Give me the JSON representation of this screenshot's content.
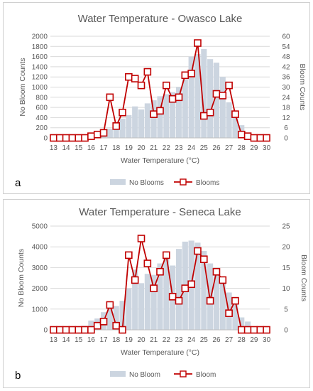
{
  "colors": {
    "bar": "#ccd5e0",
    "line": "#c00000",
    "marker_fill": "#ffffff",
    "grid": "#d9d9d9",
    "axis": "#bfbfbf",
    "text": "#595959"
  },
  "chart_data": [
    {
      "id": "a",
      "type": "bar+line",
      "panel_label": "a",
      "title": "Water Temperature - Owasco Lake",
      "xlabel": "Water Temperature (°C)",
      "ylabel_left": "No Bloom Counts",
      "ylabel_right": "Bloom Counts",
      "ylim_left": [
        0,
        2000
      ],
      "ylim_right": [
        0,
        60
      ],
      "yticks_left": [
        0,
        200,
        400,
        600,
        800,
        1000,
        1200,
        1400,
        1600,
        1800,
        2000
      ],
      "yticks_right": [
        0,
        6,
        12,
        18,
        24,
        30,
        36,
        42,
        48,
        54,
        60
      ],
      "x_ticks": [
        "13",
        "14",
        "15",
        "16",
        "17",
        "18",
        "19",
        "20",
        "21",
        "22",
        "23",
        "24",
        "25",
        "26",
        "27",
        "28",
        "29",
        "30"
      ],
      "x": [
        13,
        13.5,
        14,
        14.5,
        15,
        15.5,
        16,
        16.5,
        17,
        17.5,
        18,
        18.5,
        19,
        19.5,
        20,
        20.5,
        21,
        21.5,
        22,
        22.5,
        23,
        23.5,
        24,
        24.5,
        25,
        25.5,
        26,
        26.5,
        27,
        27.5,
        28,
        28.5,
        29,
        29.5,
        30
      ],
      "grid": true,
      "legend_position": "bottom",
      "series": [
        {
          "name": "No Blooms",
          "type": "bar",
          "axis": "left",
          "values": [
            0,
            0,
            0,
            0,
            0,
            0,
            20,
            80,
            130,
            180,
            250,
            380,
            450,
            620,
            560,
            680,
            740,
            820,
            860,
            900,
            1000,
            1150,
            1600,
            1650,
            1750,
            1550,
            1480,
            1200,
            700,
            400,
            250,
            60,
            20,
            0,
            0
          ]
        },
        {
          "name": "Blooms",
          "type": "line",
          "axis": "right",
          "values": [
            0,
            0,
            0,
            0,
            0,
            0,
            1,
            2,
            3,
            24,
            7,
            15,
            36,
            35,
            31,
            39,
            14,
            16,
            31,
            23,
            24,
            37,
            38,
            56,
            13,
            15,
            26,
            25,
            31,
            14,
            2,
            1,
            0,
            0,
            0
          ]
        }
      ]
    },
    {
      "id": "b",
      "type": "bar+line",
      "panel_label": "b",
      "title": "Water Temperature - Seneca Lake",
      "xlabel": "Water Temperature (°C)",
      "ylabel_left": "No Bloom Counts",
      "ylabel_right": "Bloom Counts",
      "ylim_left": [
        0,
        5000
      ],
      "ylim_right": [
        0,
        25
      ],
      "yticks_left": [
        0,
        1000,
        2000,
        3000,
        4000,
        5000
      ],
      "yticks_right": [
        0,
        5,
        10,
        15,
        20,
        25
      ],
      "x_ticks": [
        "13",
        "14",
        "15",
        "16",
        "17",
        "18",
        "19",
        "20",
        "21",
        "22",
        "23",
        "24",
        "25",
        "26",
        "27",
        "28",
        "29",
        "30"
      ],
      "x": [
        13,
        13.5,
        14,
        14.5,
        15,
        15.5,
        16,
        16.5,
        17,
        17.5,
        18,
        18.5,
        19,
        19.5,
        20,
        20.5,
        21,
        21.5,
        22,
        22.5,
        23,
        23.5,
        24,
        24.5,
        25,
        25.5,
        26,
        26.5,
        27,
        27.5,
        28,
        28.5,
        29,
        29.5,
        30
      ],
      "grid": true,
      "legend_position": "bottom",
      "series": [
        {
          "name": "No Bloom",
          "type": "bar",
          "axis": "left",
          "values": [
            0,
            0,
            0,
            50,
            100,
            200,
            450,
            550,
            850,
            1000,
            1150,
            1400,
            2000,
            2900,
            2250,
            2700,
            2650,
            3200,
            3600,
            3100,
            3900,
            4250,
            4300,
            4200,
            3800,
            3200,
            2800,
            2400,
            1800,
            1300,
            600,
            400,
            100,
            0,
            0
          ]
        },
        {
          "name": "Bloom",
          "type": "line",
          "axis": "right",
          "values": [
            0,
            0,
            0,
            0,
            0,
            0,
            0,
            1,
            2,
            6,
            1,
            0,
            18,
            12,
            22,
            16,
            10,
            14,
            18,
            8,
            7,
            10,
            11,
            19,
            17,
            7,
            14,
            12,
            4,
            7,
            0,
            0,
            0,
            0,
            0
          ]
        }
      ]
    }
  ]
}
